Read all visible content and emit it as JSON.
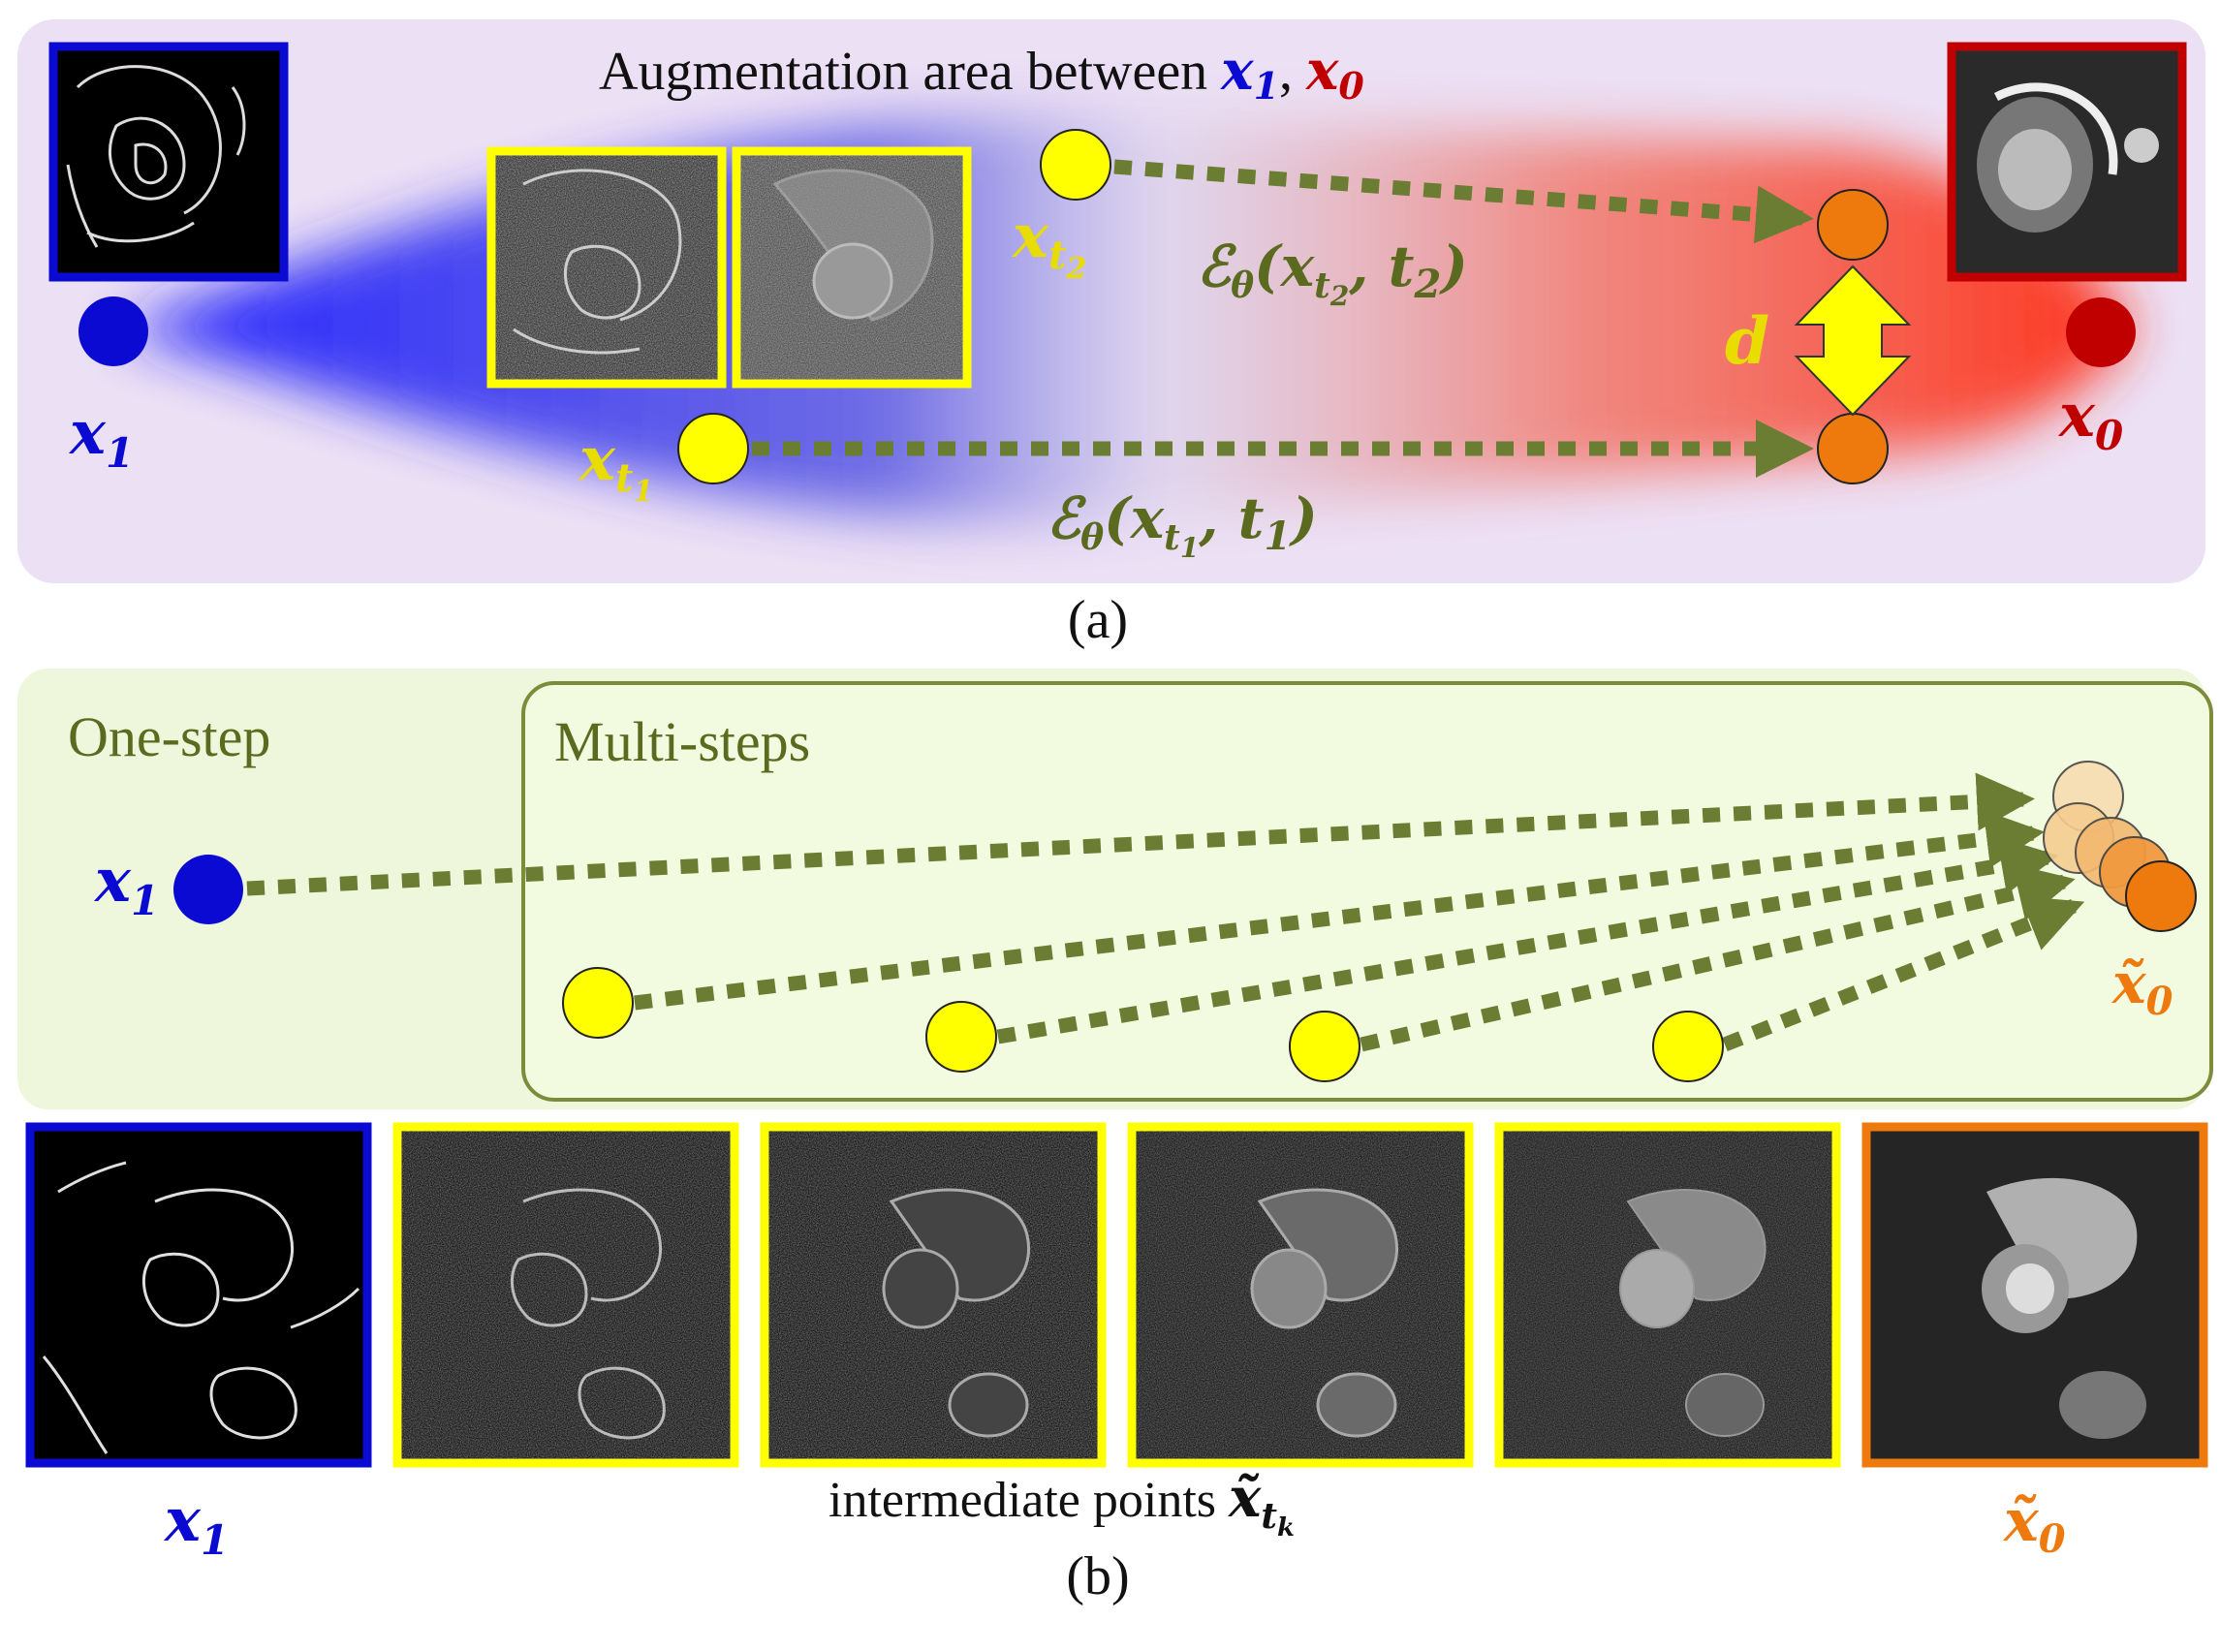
{
  "panel_a": {
    "title_prefix": "Augmentation area between ",
    "title_x1": "x",
    "title_x1_sub": "1",
    "title_comma": ", ",
    "title_x0": "x",
    "title_x0_sub": "0",
    "x1_label": "x",
    "x1_sub": "1",
    "x0_label": "x",
    "x0_sub": "0",
    "xt1_label": "x",
    "xt1_sub": "t",
    "xt1_subsub": "1",
    "xt2_label": "x",
    "xt2_sub": "t",
    "xt2_subsub": "2",
    "d_label": "d",
    "eps_t2": {
      "eps": "ℰ",
      "theta": "θ",
      "open": "(x",
      "t": "t",
      "tsub": "2",
      "comma": ", t",
      "ct": "2",
      "close": ")"
    },
    "eps_t1": {
      "eps": "ℰ",
      "theta": "θ",
      "open": "(x",
      "t": "t",
      "tsub": "1",
      "comma": ", t",
      "ct": "1",
      "close": ")"
    },
    "caption": "(a)"
  },
  "panel_b": {
    "one_step": "One-step",
    "multi_steps": "Multi-steps",
    "x1_label": "x",
    "x1_sub": "1",
    "x0_label": "x̃",
    "x0_sub": "0",
    "bottom_x1": "x",
    "bottom_x1_sub": "1",
    "intermediate_text": "intermediate points ",
    "intermediate_sym": "x̃",
    "intermediate_sub": "t",
    "intermediate_subsub": "k",
    "bottom_x0": "x̃",
    "bottom_x0_sub": "0",
    "caption": "(b)"
  },
  "colors": {
    "blue": "#0a0ad2",
    "red": "#c00000",
    "yellow": "#ffff00",
    "yellow_text": "#e8dc00",
    "orange": "#ee7a0e",
    "olive": "#5a6a1e",
    "arrow": "#6b7d32",
    "panel_a_bg": "#ece0f5",
    "panel_b_bg": "#eef6dc"
  }
}
